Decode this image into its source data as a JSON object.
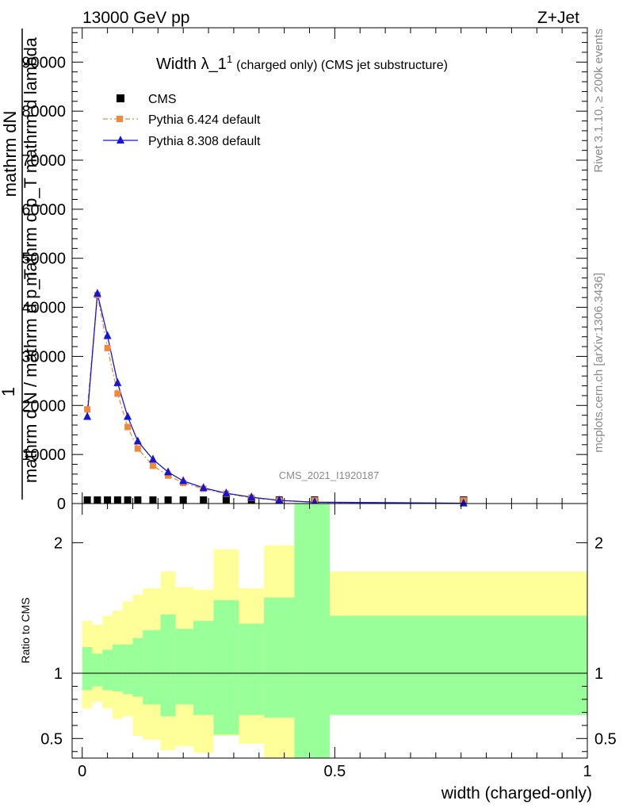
{
  "header": {
    "energy": "13000 GeV pp",
    "process": "Z+Jet"
  },
  "side_text": {
    "rivet": "Rivet 3.1.10, ≥ 200k events",
    "mcplots": "mcplots.cern.ch [arXiv:1306.3436]"
  },
  "chart_data": [
    {
      "type": "line",
      "title_main": "Width λ_1",
      "title_sup": "1",
      "title_rest": "(charged only) (CMS jet substructure)",
      "watermark": "CMS_2021_I1920187",
      "ylabel_num": "1",
      "ylabel_top": "mathrm dN",
      "ylabel_top2": "mathrm d p_T mathrm d lambda",
      "ylabel_bottom": "mathrm d N / mathrm d p_T",
      "xlim": [
        -0.02,
        1.0
      ],
      "ylim": [
        0,
        97000
      ],
      "yticks": [
        0,
        10000,
        20000,
        30000,
        40000,
        50000,
        60000,
        70000,
        80000,
        90000
      ],
      "ytick_labels": [
        "0",
        "10000",
        "20000",
        "30000",
        "40000",
        "50000",
        "60000",
        "70000",
        "80000",
        "90000"
      ],
      "legend_position": "top-left",
      "series": [
        {
          "name": "CMS",
          "color": "#000000",
          "marker": "square",
          "x": [
            0.01,
            0.03,
            0.05,
            0.07,
            0.09,
            0.11,
            0.14,
            0.17,
            0.2,
            0.24,
            0.285,
            0.335,
            0.39,
            0.46,
            0.755
          ],
          "y": [
            200,
            200,
            200,
            200,
            200,
            200,
            200,
            200,
            200,
            200,
            200,
            150,
            120,
            100,
            60
          ]
        },
        {
          "name": "Pythia 6.424 default",
          "color": "#f08a3a",
          "marker": "square",
          "line": "dash-dot",
          "x": [
            0.01,
            0.03,
            0.05,
            0.07,
            0.09,
            0.11,
            0.14,
            0.17,
            0.2,
            0.24,
            0.285,
            0.335,
            0.39,
            0.46,
            0.755
          ],
          "y": [
            19200,
            42500,
            31700,
            22400,
            15600,
            11200,
            7700,
            5700,
            4200,
            3000,
            2000,
            1200,
            600,
            250,
            60
          ]
        },
        {
          "name": "Pythia 8.308 default",
          "color": "#1515d8",
          "marker": "triangle",
          "line": "solid",
          "x": [
            0.01,
            0.03,
            0.05,
            0.07,
            0.09,
            0.11,
            0.14,
            0.17,
            0.2,
            0.24,
            0.285,
            0.335,
            0.39,
            0.46,
            0.755
          ],
          "y": [
            17700,
            42800,
            34200,
            24600,
            17700,
            12700,
            9000,
            6400,
            4600,
            3200,
            2100,
            1300,
            650,
            280,
            70
          ]
        }
      ]
    },
    {
      "type": "area",
      "ylabel": "Ratio to CMS",
      "xlabel": "width (charged-only)",
      "xlim": [
        -0.02,
        1.0
      ],
      "ylim": [
        0.35,
        2.3
      ],
      "yticks": [
        0.5,
        1,
        2
      ],
      "ytick_labels": [
        "0.5",
        "1",
        "2"
      ],
      "xticks": [
        0,
        0.5,
        1
      ],
      "xtick_labels": [
        "0",
        "0.5",
        "1"
      ],
      "reference_line": 1,
      "bin_edges": [
        0,
        0.02,
        0.04,
        0.06,
        0.08,
        0.1,
        0.12,
        0.155,
        0.185,
        0.22,
        0.26,
        0.31,
        0.36,
        0.42,
        0.49,
        1.0
      ],
      "bands": [
        {
          "name": "total uncertainty",
          "color": "#ffff99",
          "lo": [
            0.73,
            0.78,
            0.73,
            0.65,
            0.67,
            0.52,
            0.49,
            0.41,
            0.44,
            0.39,
            0.52,
            0.46,
            0.33,
            0.33,
            0.68
          ],
          "hi": [
            1.4,
            1.37,
            1.44,
            1.48,
            1.55,
            1.6,
            1.65,
            1.78,
            1.66,
            1.64,
            1.95,
            1.65,
            1.98,
            2.3,
            1.78
          ]
        },
        {
          "name": "stat uncertainty",
          "color": "#99ff99",
          "lo": [
            0.87,
            0.9,
            0.87,
            0.86,
            0.84,
            0.82,
            0.76,
            0.67,
            0.76,
            0.68,
            0.53,
            0.68,
            0.66,
            0.33,
            0.68
          ],
          "hi": [
            1.2,
            1.15,
            1.18,
            1.22,
            1.22,
            1.27,
            1.33,
            1.45,
            1.34,
            1.4,
            1.56,
            1.38,
            1.58,
            2.3,
            1.44
          ]
        }
      ]
    }
  ]
}
